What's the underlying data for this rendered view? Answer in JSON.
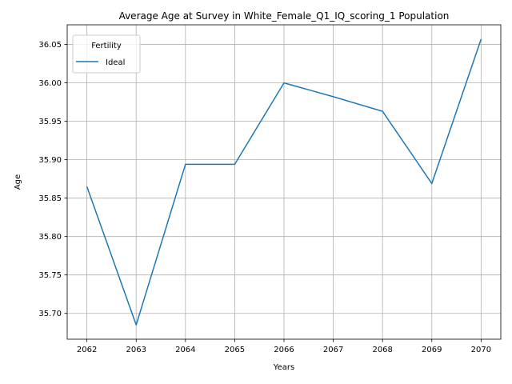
{
  "chart_data": {
    "type": "line",
    "title": "Average Age at Survey in White_Female_Q1_IQ_scoring_1 Population",
    "xlabel": "Years",
    "ylabel": "Age",
    "x": [
      2062,
      2063,
      2064,
      2065,
      2066,
      2067,
      2068,
      2069,
      2070
    ],
    "series": [
      {
        "name": "Ideal",
        "color": "#1f77b4",
        "values": [
          35.865,
          35.685,
          35.894,
          35.894,
          36.0,
          35.982,
          35.963,
          35.869,
          36.057
        ]
      }
    ],
    "xlim": [
      2061.6,
      2070.4
    ],
    "ylim": [
      35.6664,
      36.0756
    ],
    "xticks": [
      2062,
      2063,
      2064,
      2065,
      2066,
      2067,
      2068,
      2069,
      2070
    ],
    "yticks": [
      "35.70",
      "35.75",
      "35.80",
      "35.85",
      "35.90",
      "35.95",
      "36.00",
      "36.05"
    ],
    "grid": true,
    "legend": {
      "title": "Fertility",
      "placement": "top-left"
    }
  }
}
